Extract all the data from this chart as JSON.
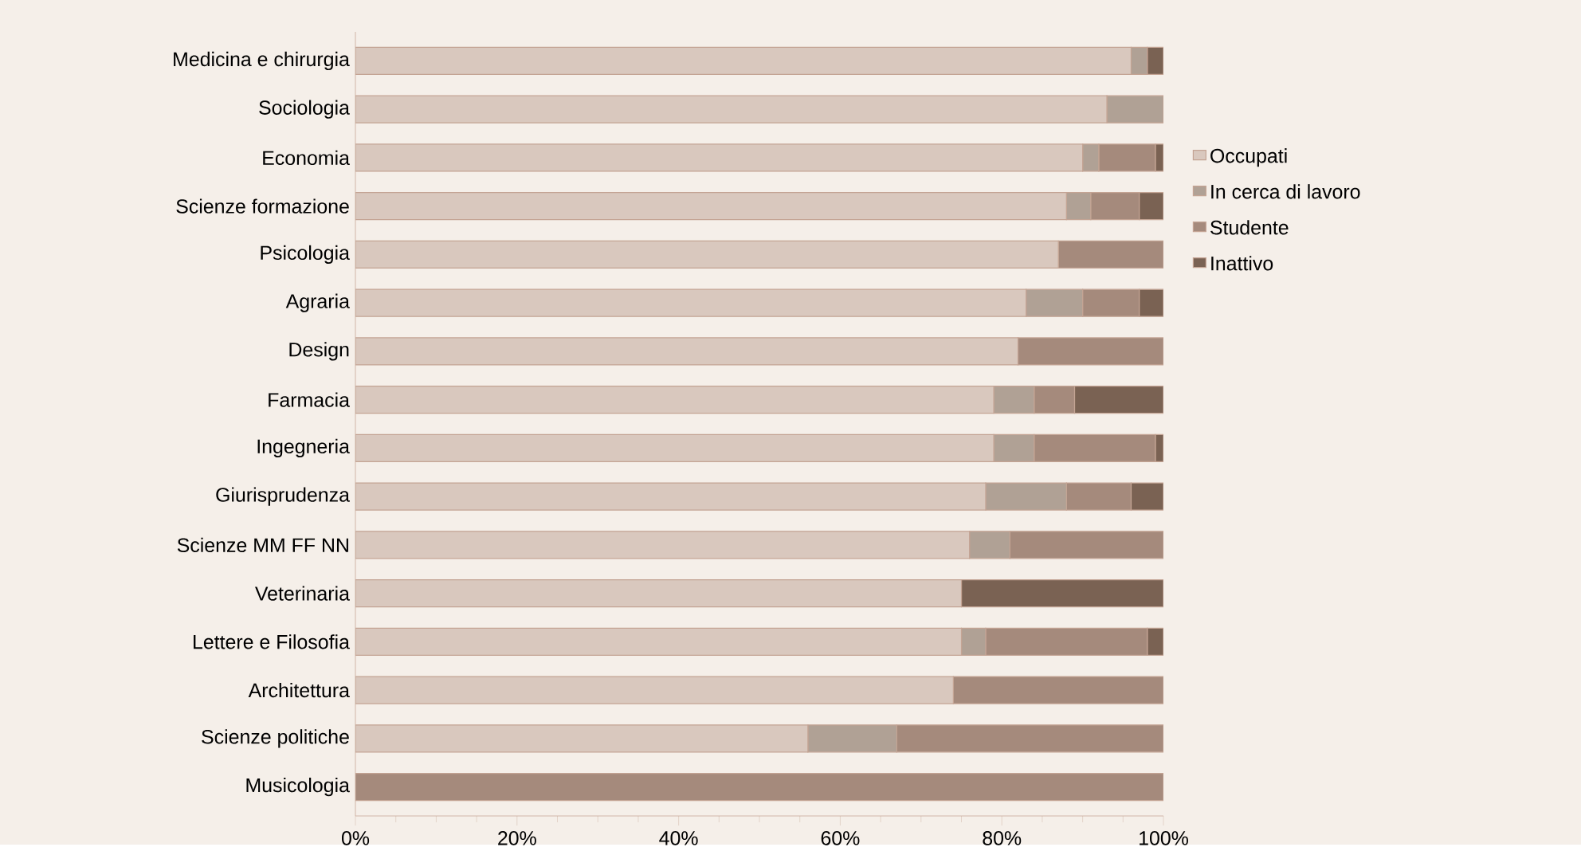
{
  "chart_data": {
    "type": "bar",
    "orientation": "horizontal",
    "stacked": true,
    "legend": "right",
    "grid": false,
    "categories": [
      "Medicina e chirurgia",
      "Sociologia",
      "Economia",
      "Scienze formazione",
      "Psicologia",
      "Agraria",
      "Design",
      "Farmacia",
      "Ingegneria",
      "Giurisprudenza",
      "Scienze MM FF NN",
      "Veterinaria",
      "Lettere e Filosofia",
      "Architettura",
      "Scienze politiche",
      "Musicologia"
    ],
    "series": [
      {
        "name": "Occupati",
        "color": "#d9c8be",
        "values": [
          96,
          93,
          90,
          88,
          87,
          83,
          82,
          79,
          79,
          78,
          76,
          75,
          75,
          74,
          56,
          0
        ]
      },
      {
        "name": "In cerca di lavoro",
        "color": "#b0a195",
        "values": [
          2,
          7,
          2,
          3,
          0,
          7,
          0,
          5,
          5,
          10,
          5,
          0,
          3,
          0,
          11,
          0
        ]
      },
      {
        "name": "Studente",
        "color": "#a58a7c",
        "values": [
          0,
          0,
          7,
          6,
          13,
          7,
          18,
          5,
          15,
          8,
          19,
          0,
          20,
          26,
          33,
          100
        ]
      },
      {
        "name": "Inattivo",
        "color": "#7a6253",
        "values": [
          2,
          0,
          1,
          3,
          0,
          3,
          0,
          11,
          1,
          4,
          0,
          25,
          2,
          0,
          0,
          0
        ]
      }
    ],
    "xlim": [
      0,
      100
    ],
    "xticks": [
      {
        "value": 0,
        "label": "0%"
      },
      {
        "value": 20,
        "label": "20%"
      },
      {
        "value": 40,
        "label": "40%"
      },
      {
        "value": 60,
        "label": "60%"
      },
      {
        "value": 80,
        "label": "80%"
      },
      {
        "value": 100,
        "label": "100%"
      }
    ]
  }
}
